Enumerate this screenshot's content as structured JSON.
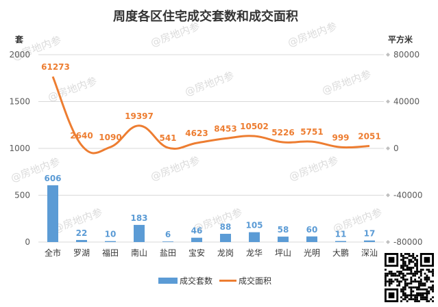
{
  "chart_data": {
    "type": "bar+line",
    "title": "周度各区住宅成交套数和成交面积",
    "left_axis_unit": "套",
    "right_axis_unit": "平方米",
    "left_ylim": [
      0,
      2000
    ],
    "left_ticks": [
      0,
      500,
      1000,
      1500,
      2000
    ],
    "right_ylim": [
      -80000,
      80000
    ],
    "right_ticks": [
      -80000,
      -40000,
      0,
      40000,
      80000
    ],
    "categories": [
      "全市",
      "罗湖",
      "福田",
      "南山",
      "盐田",
      "宝安",
      "龙岗",
      "龙华",
      "坪山",
      "光明",
      "大鹏",
      "深汕"
    ],
    "series": [
      {
        "name": "成交套数",
        "type": "bar",
        "axis": "left",
        "color": "#5b9bd5",
        "values": [
          606,
          22,
          10,
          183,
          6,
          46,
          88,
          105,
          58,
          60,
          11,
          17
        ]
      },
      {
        "name": "成交面积",
        "type": "line",
        "axis": "right",
        "color": "#ed7d31",
        "values": [
          61273,
          2640,
          1090,
          19397,
          541,
          4623,
          8453,
          10502,
          5226,
          5751,
          999,
          2051
        ]
      }
    ],
    "grid": true,
    "legend_position": "bottom"
  },
  "watermark": "@房地内参"
}
